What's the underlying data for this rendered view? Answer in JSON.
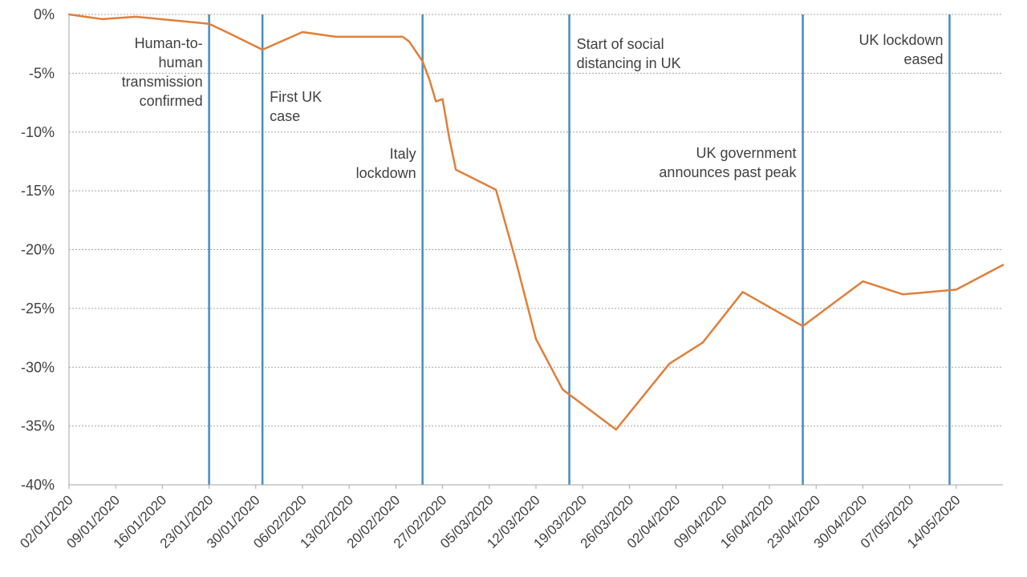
{
  "chart_data": {
    "type": "line",
    "title": "",
    "xlabel": "",
    "ylabel": "",
    "ylim": [
      -40,
      0
    ],
    "y_ticks": [
      0,
      -5,
      -10,
      -15,
      -20,
      -25,
      -30,
      -35,
      -40
    ],
    "y_tick_labels": [
      "0%",
      "-5%",
      "-10%",
      "-15%",
      "-20%",
      "-25%",
      "-30%",
      "-35%",
      "-40%"
    ],
    "x_tick_labels": [
      "02/01/2020",
      "09/01/2020",
      "16/01/2020",
      "23/01/2020",
      "30/01/2020",
      "06/02/2020",
      "13/02/2020",
      "20/02/2020",
      "27/02/2020",
      "05/03/2020",
      "12/03/2020",
      "19/03/2020",
      "26/03/2020",
      "02/04/2020",
      "09/04/2020",
      "16/04/2020",
      "23/04/2020",
      "30/04/2020",
      "07/05/2020",
      "14/05/2020"
    ],
    "x_range": [
      "2020-01-02",
      "2020-05-21"
    ],
    "grid": "horizontal dotted",
    "line_color": "#e07f39",
    "event_color": "#4a8bc0",
    "series": [
      {
        "points": [
          [
            "2020-01-02",
            0.0
          ],
          [
            "2020-01-07",
            -0.4
          ],
          [
            "2020-01-12",
            -0.2
          ],
          [
            "2020-01-23",
            -0.8
          ],
          [
            "2020-01-26",
            -1.6
          ],
          [
            "2020-01-31",
            -3.0
          ],
          [
            "2020-02-06",
            -1.5
          ],
          [
            "2020-02-11",
            -1.9
          ],
          [
            "2020-02-17",
            -1.9
          ],
          [
            "2020-02-21",
            -1.9
          ],
          [
            "2020-02-22",
            -2.3
          ],
          [
            "2020-02-24",
            -4.0
          ],
          [
            "2020-02-25",
            -5.5
          ],
          [
            "2020-02-26",
            -7.4
          ],
          [
            "2020-02-27",
            -7.2
          ],
          [
            "2020-02-28",
            -10.5
          ],
          [
            "2020-02-29",
            -13.2
          ],
          [
            "2020-03-06",
            -14.9
          ],
          [
            "2020-03-09",
            -21.0
          ],
          [
            "2020-03-12",
            -27.6
          ],
          [
            "2020-03-16",
            -31.9
          ],
          [
            "2020-03-24",
            -35.3
          ],
          [
            "2020-04-01",
            -29.7
          ],
          [
            "2020-04-06",
            -27.9
          ],
          [
            "2020-04-12",
            -23.6
          ],
          [
            "2020-04-21",
            -26.5
          ],
          [
            "2020-04-30",
            -22.7
          ],
          [
            "2020-05-06",
            -23.8
          ],
          [
            "2020-05-14",
            -23.4
          ],
          [
            "2020-05-21",
            -21.3
          ]
        ]
      }
    ],
    "events": [
      {
        "date": "2020-01-23",
        "label": [
          "Human-to-",
          "human",
          "transmission",
          "confirmed"
        ],
        "align": "left"
      },
      {
        "date": "2020-01-31",
        "label": [
          "First UK",
          "case"
        ],
        "align": "right"
      },
      {
        "date": "2020-02-24",
        "label": [
          "Italy",
          "lockdown"
        ],
        "align": "left"
      },
      {
        "date": "2020-03-17",
        "label": [
          "Start of social",
          "distancing in UK"
        ],
        "align": "right"
      },
      {
        "date": "2020-04-21",
        "label": [
          "UK government",
          "announces past peak"
        ],
        "align": "left"
      },
      {
        "date": "2020-05-13",
        "label": [
          "UK lockdown",
          "eased"
        ],
        "align": "left"
      }
    ]
  }
}
